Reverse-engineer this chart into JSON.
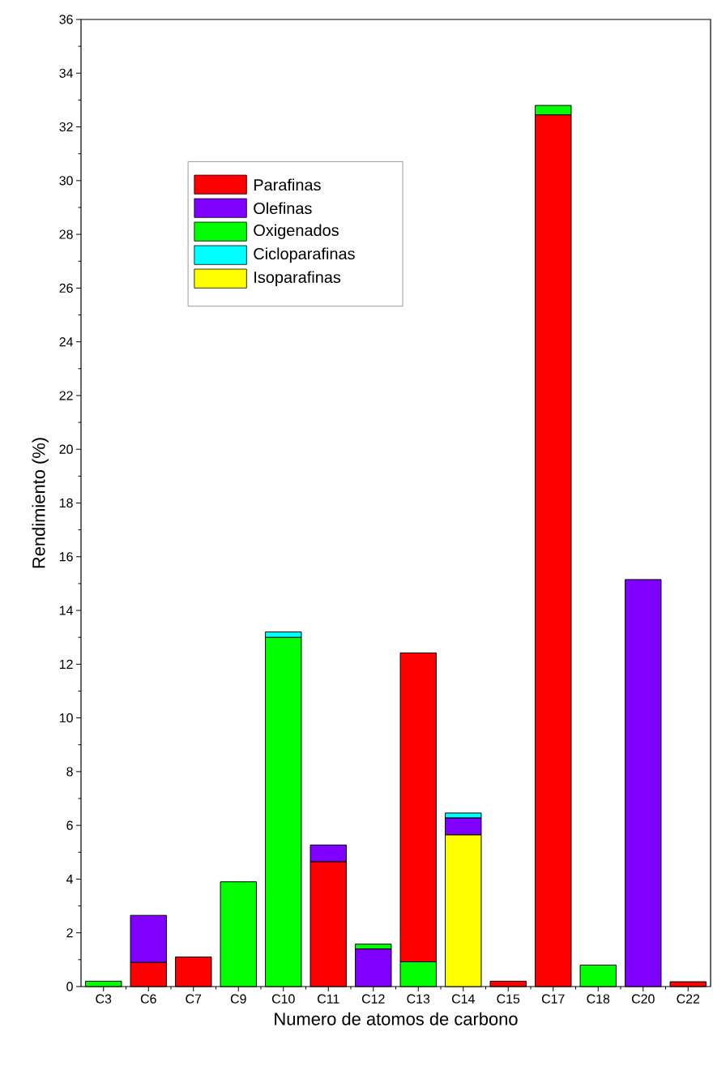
{
  "chart_data": {
    "type": "bar",
    "stacked": true,
    "xlabel": "Numero de atomos de carbono",
    "ylabel": "Rendimiento (%)",
    "categories": [
      "C3",
      "C6",
      "C7",
      "C9",
      "C10",
      "C11",
      "C12",
      "C13",
      "C14",
      "C15",
      "C17",
      "C18",
      "C20",
      "C22"
    ],
    "series": [
      {
        "color": "#00ff00",
        "values": [
          null,
          null,
          null,
          null,
          null,
          null,
          null,
          0.92,
          null,
          null,
          null,
          null,
          null,
          null
        ]
      },
      {
        "name": "Isoparafinas",
        "color": "#ffff00",
        "values": [
          null,
          null,
          null,
          null,
          null,
          null,
          null,
          null,
          5.65,
          null,
          null,
          null,
          null,
          null
        ]
      },
      {
        "name": "Parafinas",
        "color": "#ff0000",
        "values": [
          null,
          0.9,
          1.1,
          null,
          null,
          4.65,
          null,
          11.5,
          null,
          0.2,
          32.45,
          null,
          null,
          0.18
        ]
      },
      {
        "name": "Olefinas",
        "color": "#8000ff",
        "values": [
          null,
          1.75,
          null,
          null,
          null,
          0.62,
          1.4,
          null,
          0.63,
          null,
          null,
          null,
          15.15,
          null
        ]
      },
      {
        "name": "Oxigenados",
        "color": "#00ff00",
        "values": [
          0.2,
          null,
          null,
          3.9,
          13.0,
          null,
          0.18,
          null,
          null,
          null,
          0.35,
          0.8,
          null,
          null
        ]
      },
      {
        "name": "Cicloparafinas",
        "color": "#00ffff",
        "values": [
          null,
          null,
          null,
          null,
          0.2,
          null,
          null,
          null,
          0.18,
          null,
          null,
          null,
          null,
          null
        ]
      }
    ],
    "ylim": [
      0,
      36
    ],
    "yticks": [
      0,
      2,
      4,
      6,
      8,
      10,
      12,
      14,
      16,
      18,
      20,
      22,
      24,
      26,
      28,
      30,
      32,
      34,
      36
    ],
    "legend": "top left",
    "grid": false
  }
}
